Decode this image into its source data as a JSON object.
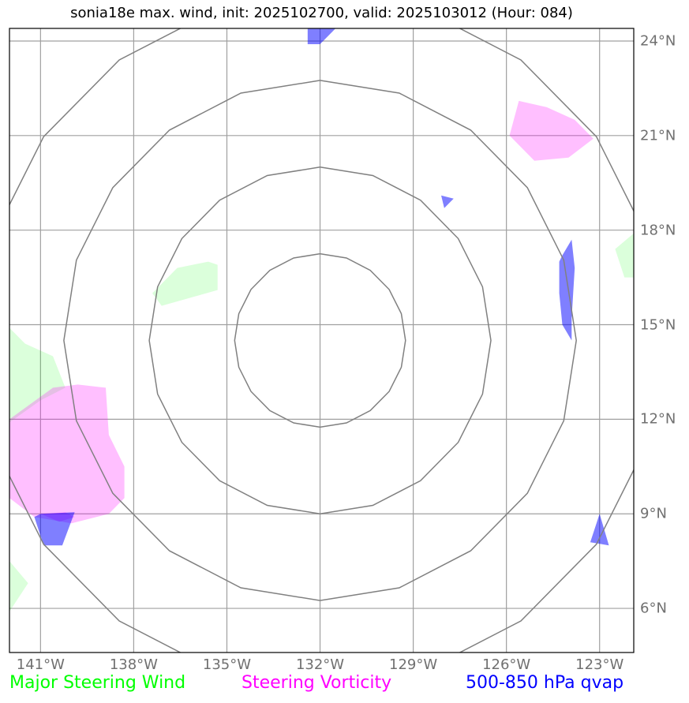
{
  "title": "sonia18e max. wind, init: 2025102700, valid: 2025103012 (Hour: 084)",
  "map": {
    "lon_range": [
      -142,
      -121.9
    ],
    "lat_range": [
      4.6,
      24.4
    ],
    "lon_ticks": [
      -141,
      -138,
      -135,
      -132,
      -129,
      -126,
      -123
    ],
    "lat_ticks": [
      24,
      21,
      18,
      15,
      12,
      9,
      6
    ],
    "lon_labels": [
      "141°W",
      "138°W",
      "135°W",
      "132°W",
      "129°W",
      "126°W",
      "123°W"
    ],
    "lat_labels": [
      "24°N",
      "21°N",
      "18°N",
      "15°N",
      "12°N",
      "9°N",
      "6°N"
    ],
    "gridlines": true,
    "center": {
      "lon": -132.0,
      "lat": 14.5
    },
    "range_rings_deg": [
      2.75,
      5.5,
      8.25,
      11.0
    ],
    "colors": {
      "steering_wind": "#00ff00",
      "steering_vorticity": "#ff00ff",
      "qvap": "#0000ff",
      "grid": "#a0a0a0",
      "ring": "#808080",
      "axis_text": "#707070"
    }
  },
  "shapes": {
    "steering_wind": [
      [
        [
          -142.0,
          14.9
        ],
        [
          -141.5,
          14.4
        ],
        [
          -140.6,
          14.0
        ],
        [
          -140.2,
          13.0
        ],
        [
          -141.0,
          12.6
        ],
        [
          -142.0,
          11.9
        ]
      ],
      [
        [
          -137.4,
          16.0
        ],
        [
          -136.6,
          16.8
        ],
        [
          -135.6,
          17.0
        ],
        [
          -135.3,
          16.9
        ],
        [
          -135.3,
          16.1
        ],
        [
          -137.1,
          15.6
        ]
      ],
      [
        [
          -121.9,
          17.9
        ],
        [
          -122.5,
          17.4
        ],
        [
          -122.2,
          16.5
        ],
        [
          -121.9,
          16.5
        ]
      ],
      [
        [
          -142.0,
          7.5
        ],
        [
          -141.4,
          6.8
        ],
        [
          -142.0,
          5.9
        ]
      ]
    ],
    "steering_vorticity": [
      [
        [
          -142.0,
          12.0
        ],
        [
          -140.6,
          13.0
        ],
        [
          -139.8,
          13.1
        ],
        [
          -138.9,
          13.0
        ],
        [
          -138.8,
          11.5
        ],
        [
          -138.3,
          10.5
        ],
        [
          -138.3,
          9.5
        ],
        [
          -138.8,
          9.0
        ],
        [
          -140.0,
          8.7
        ],
        [
          -141.2,
          8.9
        ],
        [
          -142.0,
          9.5
        ]
      ],
      [
        [
          -125.9,
          21.0
        ],
        [
          -125.6,
          22.1
        ],
        [
          -124.7,
          21.9
        ],
        [
          -123.8,
          21.5
        ],
        [
          -123.2,
          20.9
        ],
        [
          -124.0,
          20.3
        ],
        [
          -125.1,
          20.2
        ]
      ],
      [
        [
          -141.0,
          9.0
        ],
        [
          -140.2,
          9.05
        ],
        [
          -139.9,
          8.9
        ],
        [
          -140.4,
          8.75
        ]
      ]
    ],
    "qvap": [
      [
        [
          -132.4,
          24.4
        ],
        [
          -131.5,
          24.4
        ],
        [
          -132.0,
          23.9
        ],
        [
          -132.4,
          23.9
        ]
      ],
      [
        [
          -128.1,
          19.1
        ],
        [
          -127.7,
          19.0
        ],
        [
          -128.0,
          18.7
        ]
      ],
      [
        [
          -124.2,
          17.2
        ],
        [
          -123.9,
          17.7
        ],
        [
          -123.8,
          16.8
        ],
        [
          -123.9,
          15.2
        ],
        [
          -123.9,
          14.5
        ],
        [
          -124.2,
          15.0
        ],
        [
          -124.3,
          16.0
        ],
        [
          -124.3,
          17.0
        ]
      ],
      [
        [
          -141.0,
          9.0
        ],
        [
          -139.9,
          9.05
        ],
        [
          -140.3,
          8.0
        ],
        [
          -140.9,
          8.0
        ],
        [
          -141.2,
          8.9
        ]
      ],
      [
        [
          -123.0,
          9.0
        ],
        [
          -122.7,
          8.0
        ],
        [
          -123.3,
          8.1
        ]
      ]
    ]
  },
  "legend": {
    "wind": "Major Steering Wind",
    "vorticity": "Steering Vorticity",
    "qvap": "500-850 hPa qvap"
  }
}
